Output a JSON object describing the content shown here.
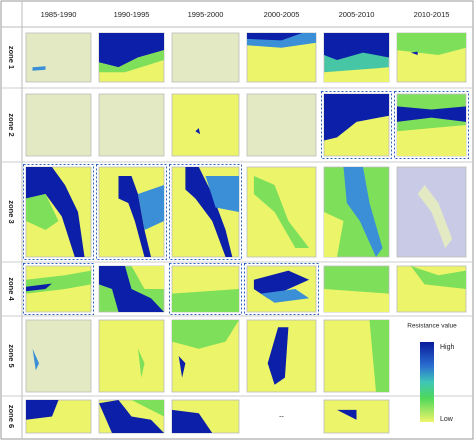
{
  "columns": [
    "1985-1990",
    "1990-1995",
    "1995-2000",
    "2000-2005",
    "2005-2010",
    "2010-2015"
  ],
  "rows": [
    "zone 1",
    "zone 2",
    "zone 3",
    "zone 4",
    "zone 5",
    "zone 6"
  ],
  "missing_panel": "--",
  "legend": {
    "title": "Resistance value",
    "high": "High",
    "low": "Low"
  }
}
